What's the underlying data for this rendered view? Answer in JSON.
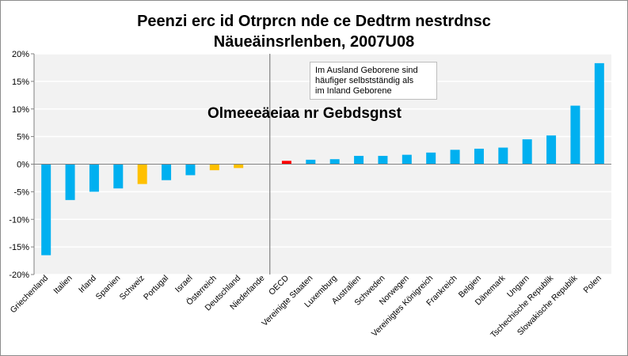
{
  "chart_data": {
    "type": "bar",
    "title": "Peenzi erc id Otrprcn nde ce Dedtrm nestrdnsc",
    "subtitle": "Näueäinsrlenben, 2007U08",
    "overlay_text": "Olmeeeäeiaa nr Gebdsgnst",
    "annotation_lines": [
      "Im Ausland Geborene sind",
      "häufiger selbstständig als",
      " im Inland Geborene"
    ],
    "ylim": [
      -20,
      20
    ],
    "yticks": [
      "-20%",
      "-15%",
      "-10%",
      "-5%",
      "0%",
      "5%",
      "10%",
      "15%",
      "20%"
    ],
    "ytick_values": [
      -20,
      -15,
      -10,
      -5,
      0,
      5,
      10,
      15,
      20
    ],
    "grid": true,
    "categories": [
      "Griechenland",
      "Italien",
      "Irland",
      "Spanien",
      "Schweiz",
      "Portugal",
      "Israel",
      "Österreich",
      "Deutschland",
      "Niederlande",
      "OECD",
      "Vereinigte Staaten",
      "Luxemburg",
      "Australien",
      "Schweden",
      "Norwegen",
      "Vereinigtes Königreich",
      "Frankreich",
      "Belgien",
      "Dänemark",
      "Ungarn",
      "Tschechische Republik",
      "Slowakische Republik",
      "Polen"
    ],
    "values": [
      -16.5,
      -6.5,
      -5.0,
      -4.4,
      -3.6,
      -2.9,
      -2.0,
      -1.1,
      -0.7,
      0.0,
      0.6,
      0.8,
      0.9,
      1.5,
      1.5,
      1.7,
      2.1,
      2.6,
      2.8,
      3.0,
      4.5,
      5.2,
      10.6,
      18.3
    ],
    "highlight": [
      "default",
      "default",
      "default",
      "default",
      "yellow",
      "default",
      "default",
      "yellow",
      "yellow",
      "default",
      "red",
      "default",
      "default",
      "default",
      "default",
      "default",
      "default",
      "default",
      "default",
      "default",
      "default",
      "default",
      "default",
      "default"
    ],
    "colors": {
      "default": "#00b0f0",
      "yellow": "#ffc000",
      "red": "#ff0000",
      "plot_bg": "#f2f2f2",
      "grid": "#ffffff",
      "divider": "#808080"
    }
  }
}
